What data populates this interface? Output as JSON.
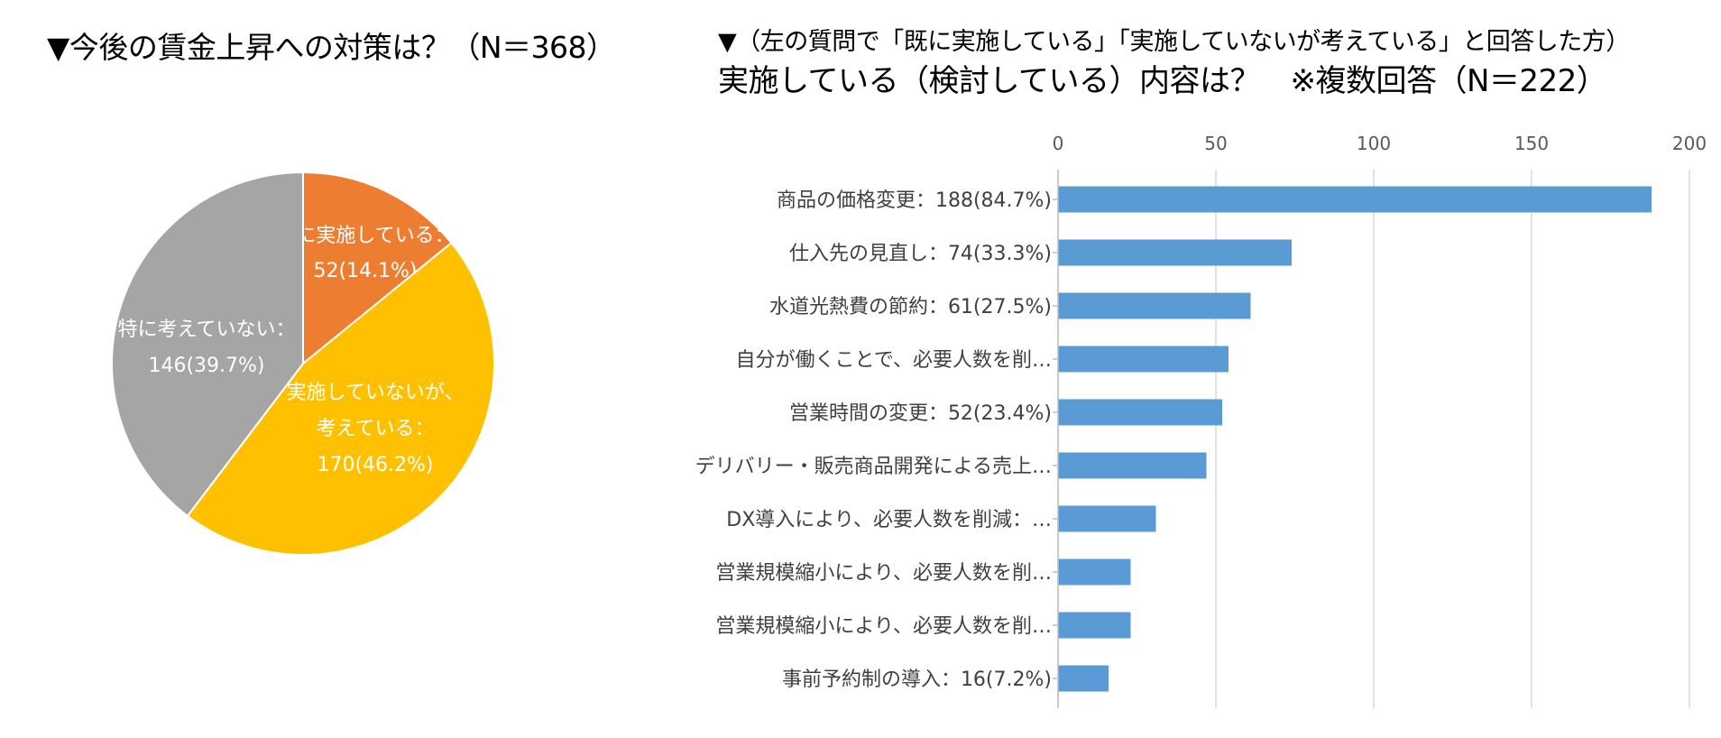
{
  "pie_title": "▼今後の賃金上昇への対策は？（N＝368）",
  "bar_title_line1": "▼（左の質問で「既に実施している」「実施していないが考えている」と回答した方）",
  "bar_title_line2": "実施している（検討している）内容は？　※複数回答（N＝222）",
  "colors": {
    "orange": "#ED7D31",
    "gold": "#FFC000",
    "gray": "#A5A5A5",
    "bar": "#5B9BD5",
    "grid": "#D9D9D9",
    "tick_text": "#595959",
    "label_text": "#404040"
  },
  "chart_data": [
    {
      "type": "pie",
      "title": "▼今後の賃金上昇への対策は？（N＝368）",
      "total": 368,
      "slices": [
        {
          "name": "既に実施している",
          "value": 52,
          "percent": 14.1,
          "label_lines": [
            "既に実施している：",
            "52(14.1%)"
          ],
          "color": "#ED7D31"
        },
        {
          "name": "実施していないが、考えている",
          "value": 170,
          "percent": 46.2,
          "label_lines": [
            "実施していないが、",
            "考えている：",
            "170(46.2%)"
          ],
          "color": "#FFC000"
        },
        {
          "name": "特に考えていない",
          "value": 146,
          "percent": 39.7,
          "label_lines": [
            "特に考えていない：",
            "146(39.7%)"
          ],
          "color": "#A5A5A5"
        }
      ]
    },
    {
      "type": "bar",
      "orientation": "horizontal",
      "title": "実施している（検討している）内容は？　※複数回答（N＝222）",
      "xlim": [
        0,
        200
      ],
      "ticks": [
        0,
        50,
        100,
        150,
        200
      ],
      "tick_labels": [
        "0",
        "50",
        "100",
        "150",
        "200"
      ],
      "grid": true,
      "categories": [
        "商品の価格変更：188(84.7%)",
        "仕入先の見直し：74(33.3%)",
        "水道光熱費の節約：61(27.5%)",
        "自分が働くことで、必要人数を削…",
        "営業時間の変更：52(23.4%)",
        "デリバリー・販売商品開発による売上…",
        "DX導入により、必要人数を削減：…",
        "営業規模縮小により、必要人数を削…",
        "営業規模縮小により、必要人数を削…",
        "事前予約制の導入：16(7.2%)"
      ],
      "values": [
        188,
        74,
        61,
        54,
        52,
        47,
        31,
        23,
        23,
        16
      ]
    }
  ]
}
